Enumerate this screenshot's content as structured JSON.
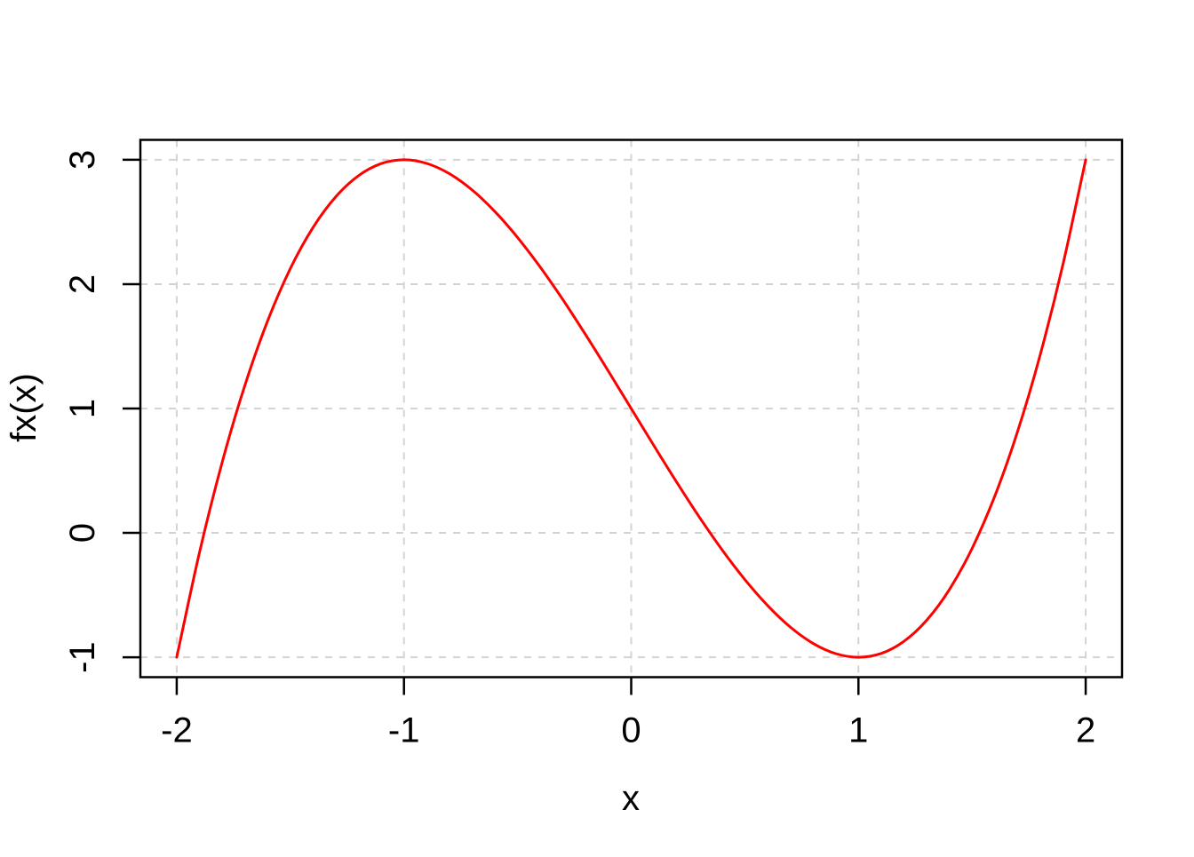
{
  "figure": {
    "background": "#ffffff",
    "frame_color": "#000000",
    "text_color": "#000000"
  },
  "chart_data": {
    "type": "line",
    "title": "",
    "xlabel": "x",
    "ylabel": "fx(x)",
    "xlim": [
      -2.16,
      2.16
    ],
    "ylim": [
      -1.16,
      3.16
    ],
    "x_ticks": [
      -2,
      -1,
      0,
      1,
      2
    ],
    "y_ticks": [
      -1,
      0,
      1,
      2,
      3
    ],
    "grid": {
      "visible": true,
      "style": "dashed",
      "color": "#d3d3d3"
    },
    "series": [
      {
        "name": "fx",
        "function": "f(x) = x^3 - 3x + 1",
        "color": "#ff0000",
        "line_width": 3,
        "x": [
          -2,
          -1.9,
          -1.8,
          -1.7,
          -1.6,
          -1.5,
          -1.4,
          -1.3,
          -1.2,
          -1.1,
          -1,
          -0.9,
          -0.8,
          -0.7,
          -0.6,
          -0.5,
          -0.4,
          -0.3,
          -0.2,
          -0.1,
          0,
          0.1,
          0.2,
          0.3,
          0.4,
          0.5,
          0.6,
          0.7,
          0.8,
          0.9,
          1,
          1.1,
          1.2,
          1.3,
          1.4,
          1.5,
          1.6,
          1.7,
          1.8,
          1.9,
          2
        ],
        "y": [
          -1,
          -0.159,
          0.568,
          1.187,
          1.704,
          2.125,
          2.456,
          2.703,
          2.872,
          2.969,
          3,
          2.971,
          2.888,
          2.757,
          2.584,
          2.375,
          2.136,
          1.873,
          1.592,
          1.299,
          1,
          0.701,
          0.408,
          0.127,
          -0.136,
          -0.375,
          -0.584,
          -0.757,
          -0.888,
          -0.971,
          -1,
          -0.969,
          -0.872,
          -0.703,
          -0.456,
          -0.125,
          0.296,
          0.813,
          1.432,
          2.159,
          3
        ],
        "key_points": [
          {
            "x": -2,
            "y": -1
          },
          {
            "x": -1,
            "y": 3
          },
          {
            "x": 0,
            "y": 1
          },
          {
            "x": 1,
            "y": -1
          },
          {
            "x": 2,
            "y": 3
          }
        ]
      }
    ]
  }
}
